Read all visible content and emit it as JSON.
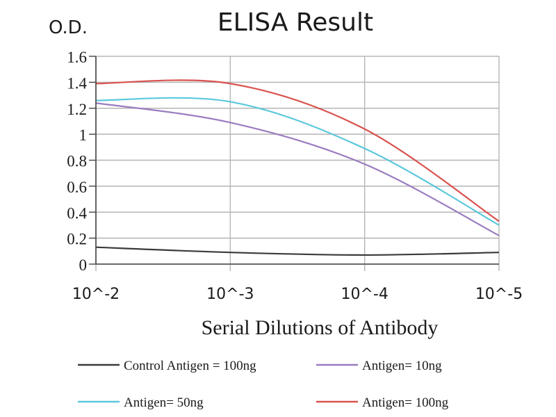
{
  "chart_data": {
    "type": "line",
    "title": "ELISA Result",
    "ylabel": "O.D.",
    "xlabel": "Serial Dilutions of Antibody",
    "x_ticks": [
      "10^-2",
      "10^-3",
      "10^-4",
      "10^-5"
    ],
    "x": [
      0.01,
      0.001,
      0.0001,
      1e-05
    ],
    "ylim": [
      0,
      1.6
    ],
    "y_ticks": [
      "0",
      "0.2",
      "0.4",
      "0.6",
      "0.8",
      "1",
      "1.2",
      "1.4",
      "1.6"
    ],
    "grid": true,
    "legend_position": "bottom",
    "series": [
      {
        "name": "Control Antigen = 100ng",
        "color": "#3a3a3a",
        "values": [
          0.13,
          0.09,
          0.07,
          0.09
        ]
      },
      {
        "name": "Antigen= 10ng",
        "color": "#9a7cc0",
        "values": [
          1.24,
          1.09,
          0.77,
          0.22
        ]
      },
      {
        "name": "Antigen= 50ng",
        "color": "#5bc8dc",
        "values": [
          1.26,
          1.25,
          0.89,
          0.3
        ]
      },
      {
        "name": "Antigen= 100ng",
        "color": "#d9524e",
        "values": [
          1.39,
          1.39,
          1.04,
          0.33
        ]
      }
    ]
  }
}
